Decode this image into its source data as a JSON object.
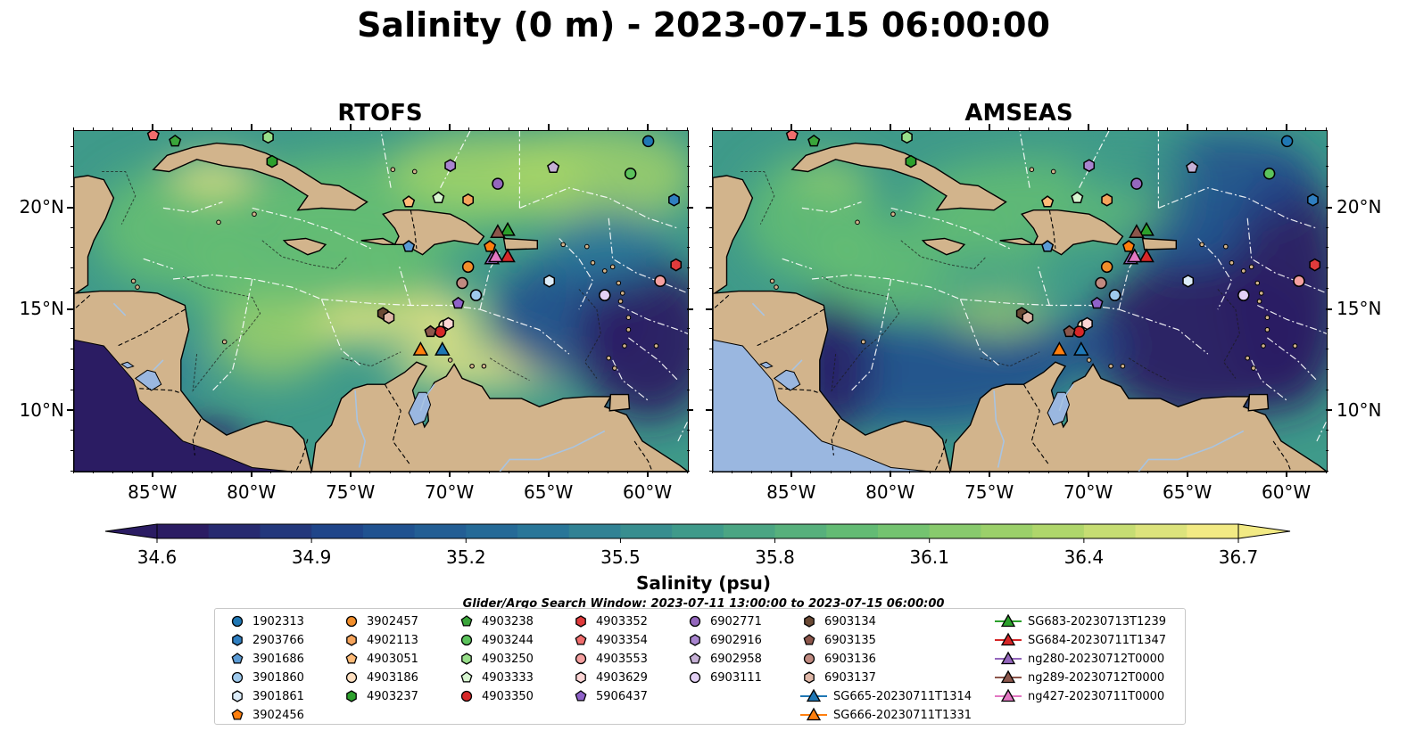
{
  "title": "Salinity (0 m) - 2023-07-15 06:00:00",
  "panels": [
    {
      "title": "RTOFS",
      "style": "rtofs"
    },
    {
      "title": "AMSEAS",
      "style": "amseas"
    }
  ],
  "axes": {
    "lon_ticks": [
      "85°W",
      "80°W",
      "75°W",
      "70°W",
      "65°W",
      "60°W"
    ],
    "lon_values": [
      -85,
      -80,
      -75,
      -70,
      -65,
      -60
    ],
    "lat_ticks": [
      "10°N",
      "15°N",
      "20°N"
    ],
    "lat_values": [
      10,
      15,
      20
    ],
    "lon_range": [
      -89,
      -58
    ],
    "lat_range": [
      7,
      23.8
    ]
  },
  "colors": {
    "land": "#d2b48c",
    "shallow_sea": "#9ab7e0",
    "ocean_gradient": [
      "#2b1c63",
      "#1e4a8d",
      "#27729a",
      "#3f9a8a",
      "#67bf72",
      "#a8d468",
      "#f2ea84"
    ]
  },
  "chart_data": {
    "type": "heatmap",
    "title": "Salinity (0 m) - 2023-07-15 06:00:00",
    "colorbar": {
      "label": "Salinity (psu)",
      "ticks": [
        "34.6",
        "34.9",
        "35.2",
        "35.5",
        "35.8",
        "36.1",
        "36.4",
        "36.7"
      ],
      "range": [
        34.6,
        36.7
      ],
      "extend": "both"
    },
    "subtitle": "Glider/Argo Search Window: 2023-07-11 13:00:00 to 2023-07-15 06:00:00",
    "markers": [
      {
        "name": "1902313",
        "marker": "circle",
        "color": "#1f77b4",
        "lon": -60.0,
        "lat": 23.3
      },
      {
        "name": "2903766",
        "marker": "hexagon",
        "color": "#2f7fc1",
        "lon": -58.7,
        "lat": 20.4
      },
      {
        "name": "3901686",
        "marker": "pentagon",
        "color": "#5b9bd5",
        "lon": -72.1,
        "lat": 18.1
      },
      {
        "name": "3901860",
        "marker": "circle",
        "color": "#9ec9ec",
        "lon": -68.7,
        "lat": 15.7
      },
      {
        "name": "3901861",
        "marker": "hexagon",
        "color": "#dcecf9",
        "lon": -65.0,
        "lat": 16.4
      },
      {
        "name": "3902456",
        "marker": "pentagon",
        "color": "#ff7f0e",
        "lon": -68.0,
        "lat": 18.1
      },
      {
        "name": "3902457",
        "marker": "circle",
        "color": "#f28e2b",
        "lon": -69.1,
        "lat": 17.1
      },
      {
        "name": "4902113",
        "marker": "hexagon",
        "color": "#f5a45c",
        "lon": -69.1,
        "lat": 20.4
      },
      {
        "name": "4903051",
        "marker": "pentagon",
        "color": "#ffbb78",
        "lon": -72.1,
        "lat": 20.3
      },
      {
        "name": "4903186",
        "marker": "circle",
        "color": "#ffdfc0",
        "lon": -70.3,
        "lat": 14.2
      },
      {
        "name": "4903237",
        "marker": "hexagon",
        "color": "#2ca02c",
        "lon": -79.0,
        "lat": 22.3
      },
      {
        "name": "4903238",
        "marker": "pentagon",
        "color": "#3aa53a",
        "lon": -83.9,
        "lat": 23.3
      },
      {
        "name": "4903244",
        "marker": "circle",
        "color": "#5cc35c",
        "lon": -60.9,
        "lat": 21.7
      },
      {
        "name": "4903250",
        "marker": "hexagon",
        "color": "#98df8a",
        "lon": -79.2,
        "lat": 23.5
      },
      {
        "name": "4903333",
        "marker": "pentagon",
        "color": "#d7f5d0",
        "lon": -70.6,
        "lat": 20.5
      },
      {
        "name": "4903350",
        "marker": "circle",
        "color": "#d62728",
        "lon": -70.5,
        "lat": 13.9
      },
      {
        "name": "4903352",
        "marker": "hexagon",
        "color": "#e03b3c",
        "lon": -58.6,
        "lat": 17.2
      },
      {
        "name": "4903354",
        "marker": "pentagon",
        "color": "#f06d6d",
        "lon": -85.0,
        "lat": 23.6
      },
      {
        "name": "4903553",
        "marker": "circle",
        "color": "#f5a0a0",
        "lon": -59.4,
        "lat": 16.4
      },
      {
        "name": "4903629",
        "marker": "hexagon",
        "color": "#fdd5d5",
        "lon": -70.1,
        "lat": 14.3
      },
      {
        "name": "5906437",
        "marker": "pentagon",
        "color": "#8f62c9",
        "lon": -69.6,
        "lat": 15.3
      },
      {
        "name": "6902771",
        "marker": "circle",
        "color": "#9467bd",
        "lon": -67.6,
        "lat": 21.2
      },
      {
        "name": "6902916",
        "marker": "hexagon",
        "color": "#a884cf",
        "lon": -70.0,
        "lat": 22.1
      },
      {
        "name": "6902958",
        "marker": "pentagon",
        "color": "#c5b0d5",
        "lon": -64.8,
        "lat": 22.0
      },
      {
        "name": "6903111",
        "marker": "circle",
        "color": "#e3d0f5",
        "lon": -62.2,
        "lat": 15.7
      },
      {
        "name": "6903134",
        "marker": "hexagon",
        "color": "#6b4a35",
        "lon": -73.4,
        "lat": 14.8
      },
      {
        "name": "6903135",
        "marker": "pentagon",
        "color": "#8c564b",
        "lon": -71.0,
        "lat": 13.9
      },
      {
        "name": "6903136",
        "marker": "circle",
        "color": "#c08a80",
        "lon": -69.4,
        "lat": 16.3
      },
      {
        "name": "6903137",
        "marker": "hexagon",
        "color": "#e0b8a8",
        "lon": -73.1,
        "lat": 14.6
      },
      {
        "name": "SG665-20230711T1314",
        "marker": "triangle",
        "line": true,
        "color": "#1f77b4",
        "lon": -70.4,
        "lat": 13.0
      },
      {
        "name": "SG666-20230711T1331",
        "marker": "triangle",
        "line": true,
        "color": "#ff7f0e",
        "lon": -71.5,
        "lat": 13.0
      },
      {
        "name": "SG683-20230713T1239",
        "marker": "triangle",
        "line": true,
        "color": "#2ca02c",
        "lon": -67.1,
        "lat": 18.9
      },
      {
        "name": "SG684-20230711T1347",
        "marker": "triangle",
        "line": true,
        "color": "#d62728",
        "lon": -67.1,
        "lat": 17.6
      },
      {
        "name": "ng280-20230712T0000",
        "marker": "triangle",
        "line": true,
        "color": "#9467bd",
        "lon": -67.9,
        "lat": 17.5
      },
      {
        "name": "ng289-20230712T0000",
        "marker": "triangle",
        "line": true,
        "color": "#8c564b",
        "lon": -67.6,
        "lat": 18.8
      },
      {
        "name": "ng427-20230711T0000",
        "marker": "triangle",
        "line": true,
        "color": "#e377c2",
        "lon": -67.7,
        "lat": 17.6
      }
    ]
  }
}
